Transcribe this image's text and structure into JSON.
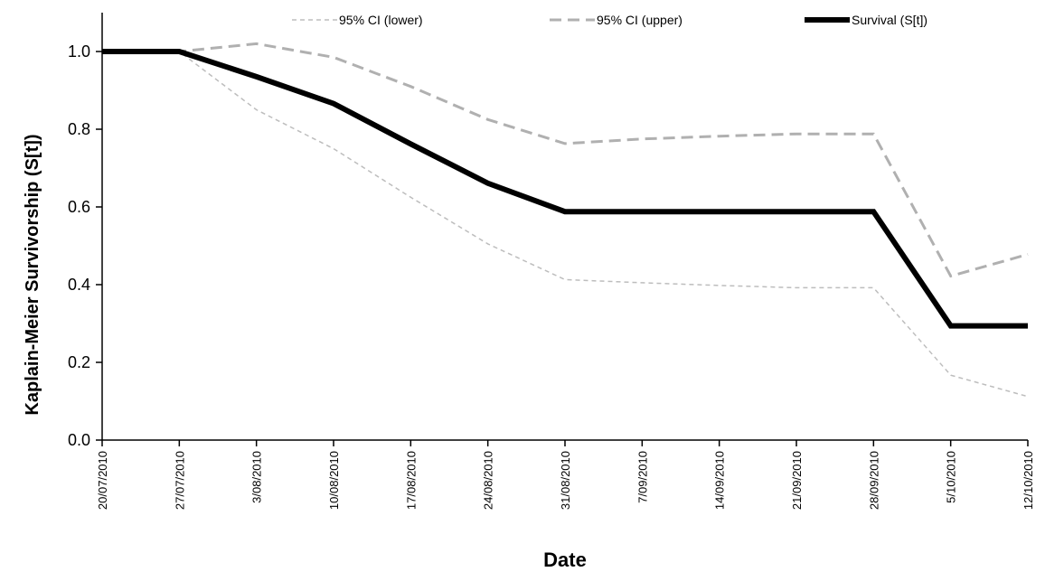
{
  "chart_data": {
    "type": "line",
    "xlabel": "Date",
    "ylabel": "Kaplain-Meier Survivorship  (S[t])",
    "ylim": [
      0,
      1.1
    ],
    "yticks": [
      "0.0",
      "0.2",
      "0.4",
      "0.6",
      "0.8",
      "1.0"
    ],
    "grid": false,
    "legend_position": "top",
    "x": [
      "20/07/2010",
      "27/07/2010",
      "3/08/2010",
      "10/08/2010",
      "17/08/2010",
      "24/08/2010",
      "31/08/2010",
      "7/09/2010",
      "14/09/2010",
      "21/09/2010",
      "28/09/2010",
      "5/10/2010",
      "12/10/2010"
    ],
    "series": [
      {
        "name": "95% CI (lower)",
        "color": "#bdbdbd",
        "style": "dashed-thin",
        "values": [
          1.0,
          1.0,
          0.85,
          0.75,
          0.625,
          0.505,
          0.413,
          0.405,
          0.398,
          0.392,
          0.392,
          0.167,
          0.112
        ]
      },
      {
        "name": "95% CI (upper)",
        "color": "#b0b0b0",
        "style": "dashed-thick",
        "values": [
          1.0,
          1.0,
          1.02,
          0.985,
          0.91,
          0.825,
          0.763,
          0.775,
          0.782,
          0.788,
          0.788,
          0.422,
          0.478
        ]
      },
      {
        "name": "Survival (S[t])",
        "color": "#000000",
        "style": "solid-thick",
        "values": [
          1.0,
          1.0,
          0.935,
          0.866,
          0.762,
          0.661,
          0.588,
          0.588,
          0.588,
          0.588,
          0.588,
          0.294,
          0.294
        ]
      }
    ]
  }
}
